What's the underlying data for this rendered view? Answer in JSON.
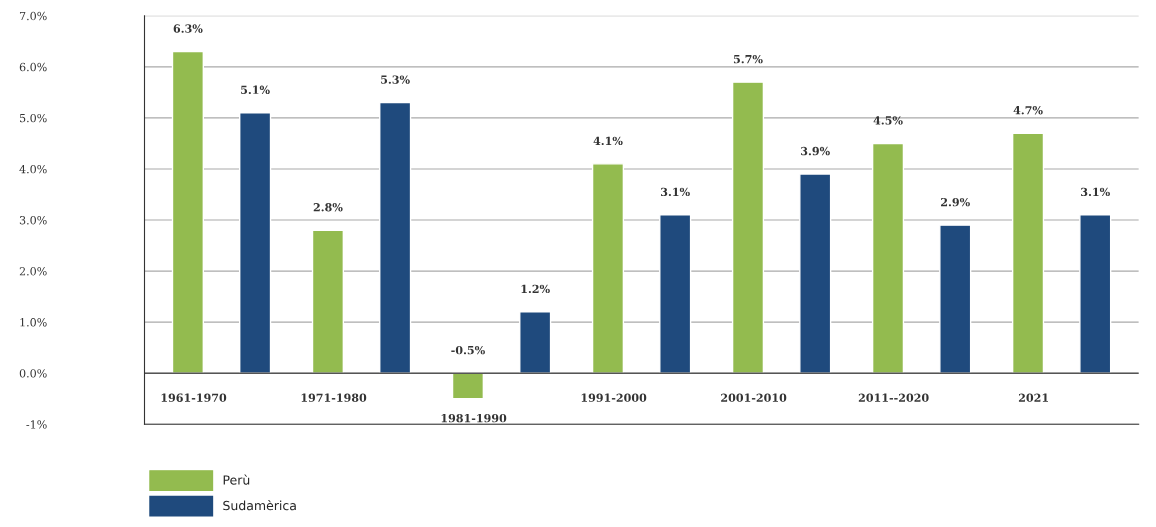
{
  "chart_data": {
    "type": "bar",
    "categories": [
      "1961-1970",
      "1971-1980",
      "1981-1990",
      "1991-2000",
      "2001-2010",
      "2011--2020",
      "2021"
    ],
    "series": [
      {
        "name": "Perù",
        "color": "#93bb4f",
        "values": [
          6.3,
          2.8,
          -0.5,
          4.1,
          5.7,
          4.5,
          4.7
        ],
        "value_labels": [
          "6.3%",
          "2.8%",
          "-0.5%",
          "4.1%",
          "5.7%",
          "4.5%",
          "4.7%"
        ]
      },
      {
        "name": "Sudamèrica",
        "color": "#1f4a7d",
        "values": [
          5.1,
          5.3,
          1.2,
          3.1,
          3.9,
          2.9,
          3.1
        ],
        "value_labels": [
          "5.1%",
          "5.3%",
          "1.2%",
          "3.1%",
          "3.9%",
          "2.9%",
          "3.1%"
        ]
      }
    ],
    "ylim": [
      -1,
      7
    ],
    "yticks": [
      {
        "value": -1,
        "label": "-1%"
      },
      {
        "value": 0,
        "label": "0.0%"
      },
      {
        "value": 1,
        "label": "1.0%"
      },
      {
        "value": 2,
        "label": "2.0%"
      },
      {
        "value": 3,
        "label": "3.0%"
      },
      {
        "value": 4,
        "label": "4.0%"
      },
      {
        "value": 5,
        "label": "5.0%"
      },
      {
        "value": 6,
        "label": "6.0%"
      },
      {
        "value": 7,
        "label": "7.0%"
      }
    ],
    "grid": "y",
    "legend": "bottom left"
  }
}
